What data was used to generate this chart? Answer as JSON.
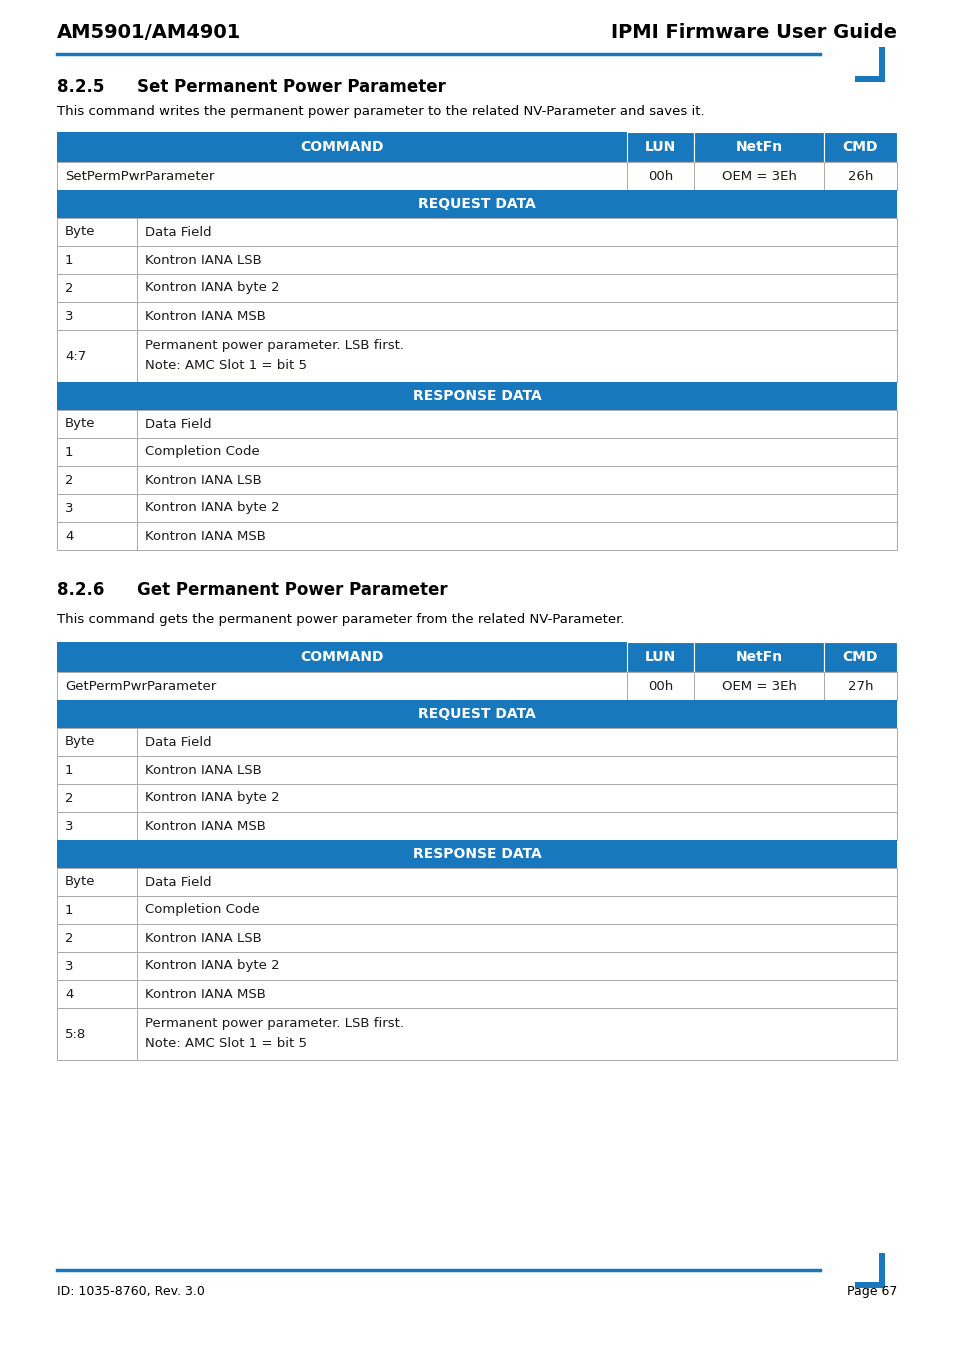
{
  "header_left": "AM5901/AM4901",
  "header_right": "IPMI Firmware User Guide",
  "footer_left": "ID: 1035-8760, Rev. 3.0",
  "footer_right": "Page 67",
  "blue_color": "#1878be",
  "section1_number": "8.2.5",
  "section1_title": "Set Permanent Power Parameter",
  "section1_desc": "This command writes the permanent power parameter to the related NV-Parameter and saves it.",
  "section2_number": "8.2.6",
  "section2_title": "Get Permanent Power Parameter",
  "section2_desc": "This command gets the permanent power parameter from the related NV-Parameter.",
  "table1_cmd_name": "SetPermPwrParameter",
  "table1_lun": "00h",
  "table1_netfn": "OEM = 3Eh",
  "table1_cmd": "26h",
  "table1_req_rows": [
    [
      "Byte",
      "Data Field"
    ],
    [
      "1",
      "Kontron IANA LSB"
    ],
    [
      "2",
      "Kontron IANA byte 2"
    ],
    [
      "3",
      "Kontron IANA MSB"
    ],
    [
      "4:7",
      "Permanent power parameter. LSB first.\nNote: AMC Slot 1 = bit 5"
    ]
  ],
  "table1_resp_rows": [
    [
      "Byte",
      "Data Field"
    ],
    [
      "1",
      "Completion Code"
    ],
    [
      "2",
      "Kontron IANA LSB"
    ],
    [
      "3",
      "Kontron IANA byte 2"
    ],
    [
      "4",
      "Kontron IANA MSB"
    ]
  ],
  "table2_cmd_name": "GetPermPwrParameter",
  "table2_lun": "00h",
  "table2_netfn": "OEM = 3Eh",
  "table2_cmd": "27h",
  "table2_req_rows": [
    [
      "Byte",
      "Data Field"
    ],
    [
      "1",
      "Kontron IANA LSB"
    ],
    [
      "2",
      "Kontron IANA byte 2"
    ],
    [
      "3",
      "Kontron IANA MSB"
    ]
  ],
  "table2_resp_rows": [
    [
      "Byte",
      "Data Field"
    ],
    [
      "1",
      "Completion Code"
    ],
    [
      "2",
      "Kontron IANA LSB"
    ],
    [
      "3",
      "Kontron IANA byte 2"
    ],
    [
      "4",
      "Kontron IANA MSB"
    ],
    [
      "5:8",
      "Permanent power parameter. LSB first.\nNote: AMC Slot 1 = bit 5"
    ]
  ]
}
